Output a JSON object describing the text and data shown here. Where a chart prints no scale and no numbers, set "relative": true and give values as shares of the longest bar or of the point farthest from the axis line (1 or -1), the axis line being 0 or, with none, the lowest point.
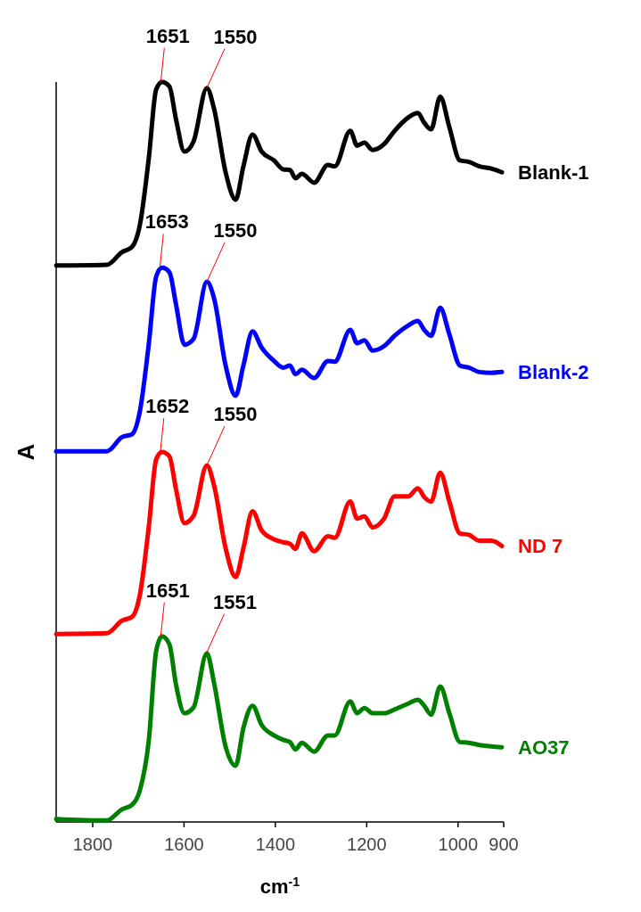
{
  "chart_data": {
    "type": "line",
    "xlabel": "cm$^{-1}$",
    "ylabel": "A",
    "relative": true,
    "xlim": [
      1880,
      900
    ],
    "xticks": [
      1800,
      1600,
      1400,
      1200,
      1000,
      900
    ],
    "x": [
      1880,
      1769,
      1736,
      1714,
      1697,
      1677,
      1661,
      1648,
      1632,
      1618,
      1599,
      1579,
      1550,
      1534,
      1509,
      1487,
      1470,
      1450,
      1430,
      1403,
      1383,
      1368,
      1356,
      1342,
      1315,
      1285,
      1270,
      1236,
      1221,
      1205,
      1187,
      1162,
      1139,
      1109,
      1088,
      1074,
      1059,
      1039,
      1019,
      996,
      976,
      953,
      927,
      904
    ],
    "series": [
      {
        "name": "Blank-1",
        "color": "#000000",
        "values": [
          0.752,
          0.753,
          0.77,
          0.777,
          0.806,
          0.898,
          0.99,
          1.0,
          0.994,
          0.951,
          0.906,
          0.92,
          0.992,
          0.963,
          0.878,
          0.841,
          0.886,
          0.929,
          0.906,
          0.894,
          0.882,
          0.881,
          0.87,
          0.876,
          0.864,
          0.888,
          0.886,
          0.934,
          0.914,
          0.918,
          0.908,
          0.916,
          0.934,
          0.952,
          0.958,
          0.945,
          0.936,
          0.98,
          0.939,
          0.894,
          0.892,
          0.886,
          0.883,
          0.878
        ]
      },
      {
        "name": "Blank-2",
        "color": "#0000ff",
        "values": [
          0.501,
          0.501,
          0.52,
          0.524,
          0.554,
          0.647,
          0.737,
          0.749,
          0.743,
          0.701,
          0.645,
          0.653,
          0.73,
          0.707,
          0.617,
          0.576,
          0.617,
          0.663,
          0.641,
          0.623,
          0.614,
          0.617,
          0.605,
          0.611,
          0.6,
          0.623,
          0.622,
          0.665,
          0.647,
          0.651,
          0.637,
          0.643,
          0.657,
          0.671,
          0.677,
          0.665,
          0.657,
          0.695,
          0.659,
          0.617,
          0.614,
          0.608,
          0.607,
          0.608
        ]
      },
      {
        "name": "ND 7",
        "color": "#ff0000",
        "values": [
          0.254,
          0.255,
          0.272,
          0.277,
          0.306,
          0.4,
          0.49,
          0.5,
          0.494,
          0.451,
          0.404,
          0.414,
          0.482,
          0.454,
          0.37,
          0.331,
          0.37,
          0.42,
          0.394,
          0.382,
          0.378,
          0.376,
          0.369,
          0.39,
          0.366,
          0.386,
          0.384,
          0.433,
          0.41,
          0.413,
          0.398,
          0.41,
          0.44,
          0.44,
          0.451,
          0.439,
          0.433,
          0.472,
          0.433,
          0.39,
          0.388,
          0.38,
          0.38,
          0.373
        ]
      },
      {
        "name": "AO37",
        "color": "#008000",
        "values": [
          0.004,
          0.002,
          0.017,
          0.023,
          0.042,
          0.111,
          0.231,
          0.251,
          0.24,
          0.187,
          0.147,
          0.155,
          0.228,
          0.187,
          0.102,
          0.076,
          0.127,
          0.157,
          0.131,
          0.117,
          0.111,
          0.108,
          0.098,
          0.107,
          0.095,
          0.117,
          0.117,
          0.163,
          0.147,
          0.154,
          0.147,
          0.147,
          0.152,
          0.16,
          0.165,
          0.157,
          0.145,
          0.183,
          0.147,
          0.108,
          0.107,
          0.104,
          0.102,
          0.101
        ]
      }
    ],
    "annotations": [
      {
        "text": "1651",
        "x": 1651,
        "y": 1.0
      },
      {
        "text": "1550",
        "x": 1550,
        "y": 0.992
      },
      {
        "text": "1653",
        "x": 1653,
        "y": 0.749
      },
      {
        "text": "1550",
        "x": 1550,
        "y": 0.73
      },
      {
        "text": "1652",
        "x": 1652,
        "y": 0.5
      },
      {
        "text": "1550",
        "x": 1550,
        "y": 0.482
      },
      {
        "text": "1651",
        "x": 1651,
        "y": 0.251
      },
      {
        "text": "1551",
        "x": 1551,
        "y": 0.228
      }
    ]
  }
}
